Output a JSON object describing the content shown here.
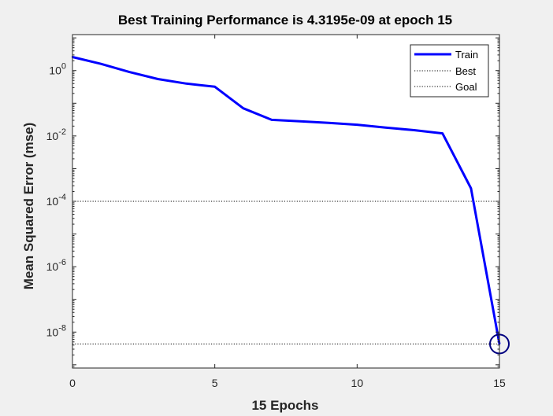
{
  "chart_data": {
    "type": "line",
    "title": "Best Training Performance is 4.3195e-09 at epoch 15",
    "xlabel": "15 Epochs",
    "ylabel": "Mean Squared Error  (mse)",
    "xlim": [
      0,
      15
    ],
    "ylim_log10": [
      -9.1,
      1.1
    ],
    "yscale": "log",
    "x_ticks": [
      0,
      5,
      10,
      15
    ],
    "y_tick_exponents": [
      0,
      -2,
      -4,
      -6,
      -8
    ],
    "series": [
      {
        "name": "Train",
        "color": "#0000ff",
        "x": [
          0,
          1,
          2,
          3,
          4,
          5,
          6,
          7,
          8,
          9,
          10,
          11,
          12,
          13,
          14,
          15
        ],
        "y": [
          2.6,
          1.6,
          0.9,
          0.55,
          0.4,
          0.32,
          0.07,
          0.031,
          0.028,
          0.025,
          0.022,
          0.018,
          0.015,
          0.012,
          0.00025,
          4.3195e-09
        ]
      }
    ],
    "best_line": {
      "name": "Best",
      "epoch": 15,
      "value": 4.3195e-09,
      "color": "#000000"
    },
    "goal_line": {
      "name": "Goal",
      "value": 0.0001,
      "color": "#000000"
    },
    "best_marker": {
      "x": 15,
      "y": 4.3195e-09,
      "color": "#000080"
    },
    "legend": {
      "position": "top-right",
      "entries": [
        "Train",
        "Best",
        "Goal"
      ]
    },
    "grid": false
  }
}
